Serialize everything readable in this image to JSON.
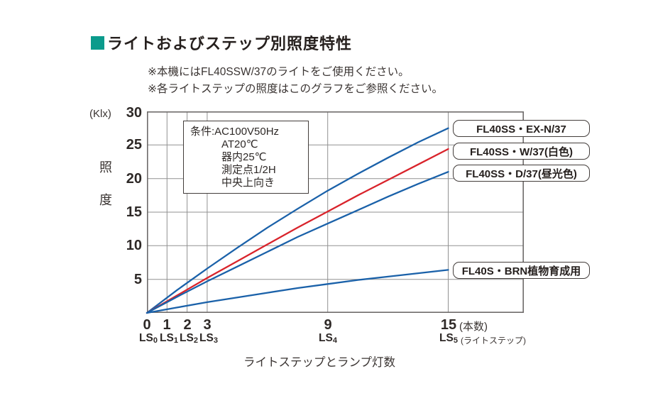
{
  "title": {
    "text": "ライトおよびステップ別照度特性",
    "square_color": "#0b9b8c"
  },
  "notes": [
    "※本機にはFL40SSW/37のライトをご使用ください。",
    "※各ライトステップの照度はこのグラフをご参照ください。"
  ],
  "chart_data": {
    "type": "line",
    "title": "ライトおよびステップ別照度特性",
    "y_axis": {
      "unit": "(Klx)",
      "name": "照度",
      "ticks": [
        30,
        25,
        20,
        15,
        10,
        5
      ],
      "ylim": [
        0,
        30
      ],
      "grid": true
    },
    "x_axis": {
      "title": "ライトステップとランプ灯数",
      "tick_values": [
        0,
        1,
        2,
        3,
        9,
        15
      ],
      "unit_suffix": "(本数)",
      "ls_labels": [
        {
          "t": "LS",
          "s": "0"
        },
        {
          "t": "LS",
          "s": "1"
        },
        {
          "t": "LS",
          "s": "2"
        },
        {
          "t": "LS",
          "s": "3"
        },
        {
          "t": "LS",
          "s": "4"
        },
        {
          "t": "LS",
          "s": "5"
        }
      ],
      "ls_suffix": "(ライトステップ)",
      "gridline_x": [
        1,
        2,
        3,
        9,
        15
      ],
      "xlim": [
        0,
        18.77
      ]
    },
    "conditions": {
      "lines": [
        "条件:AC100V50Hz",
        "AT20℃",
        "器内25℃",
        "測定点1/2H",
        "中央上向き"
      ]
    },
    "series": [
      {
        "name": "FL40SS・EX-N/37",
        "color": "#1a61a9",
        "x": [
          0,
          1.5,
          3,
          4.5,
          6,
          7.5,
          9,
          10.5,
          12,
          13.5,
          15
        ],
        "values": [
          0,
          3.4,
          6.6,
          9.7,
          12.7,
          15.5,
          18.2,
          20.7,
          23.1,
          25.4,
          27.5
        ]
      },
      {
        "name": "FL40SS・W/37(白色)",
        "color": "#d9232b",
        "x": [
          0,
          1.5,
          3,
          4.5,
          6,
          7.5,
          9,
          10.5,
          12,
          13.5,
          15
        ],
        "values": [
          0,
          2.6,
          5.2,
          7.7,
          10.2,
          12.7,
          15.1,
          17.5,
          19.8,
          22.1,
          24.4
        ]
      },
      {
        "name": "FL40SS・D/37(昼光色)",
        "color": "#1a61a9",
        "x": [
          0,
          1.5,
          3,
          4.5,
          6,
          7.5,
          9,
          10.5,
          12,
          13.5,
          15
        ],
        "values": [
          0,
          2.4,
          4.7,
          6.9,
          9.1,
          11.3,
          13.3,
          15.3,
          17.3,
          19.2,
          21.0
        ]
      },
      {
        "name": "FL40S・BRN植物育成用",
        "color": "#1a61a9",
        "x": [
          0,
          1.5,
          3,
          4.5,
          6,
          7.5,
          9,
          10.5,
          12,
          13.5,
          15
        ],
        "values": [
          0,
          0.8,
          1.6,
          2.3,
          3.0,
          3.7,
          4.3,
          4.9,
          5.4,
          5.9,
          6.4
        ]
      }
    ],
    "legend_position": "right-overlapping-plot"
  }
}
